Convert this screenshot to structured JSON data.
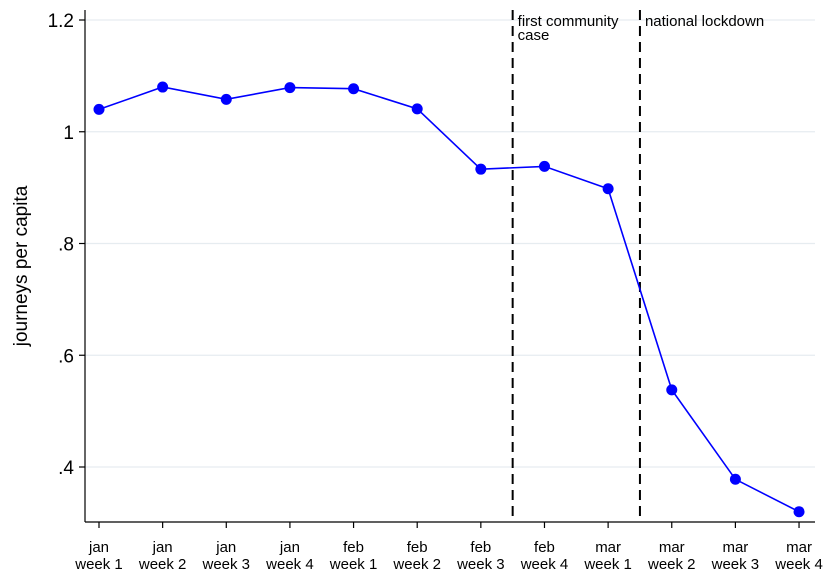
{
  "chart_data": {
    "type": "line",
    "ylabel": "journeys per capita",
    "ylim": [
      0.3,
      1.22
    ],
    "yticks": [
      {
        "value": 0.4,
        "label": ".4"
      },
      {
        "value": 0.6,
        "label": ".6"
      },
      {
        "value": 0.8,
        "label": ".8"
      },
      {
        "value": 1.0,
        "label": "1"
      },
      {
        "value": 1.2,
        "label": "1.2"
      }
    ],
    "categories": [
      [
        "jan",
        "week 1"
      ],
      [
        "jan",
        "week 2"
      ],
      [
        "jan",
        "week 3"
      ],
      [
        "jan",
        "week 4"
      ],
      [
        "feb",
        "week 1"
      ],
      [
        "feb",
        "week 2"
      ],
      [
        "feb",
        "week 3"
      ],
      [
        "feb",
        "week 4"
      ],
      [
        "mar",
        "week 1"
      ],
      [
        "mar",
        "week 2"
      ],
      [
        "mar",
        "week 3"
      ],
      [
        "mar",
        "week 4"
      ]
    ],
    "series": [
      {
        "color": "#0000ff",
        "values": [
          1.04,
          1.08,
          1.058,
          1.079,
          1.077,
          1.041,
          0.933,
          0.938,
          0.898,
          0.538,
          0.378,
          0.32
        ]
      }
    ],
    "vlines": [
      {
        "after_index": 6.5,
        "label_lines": [
          "first community",
          "case"
        ],
        "style": "dashed"
      },
      {
        "after_index": 8.5,
        "label_lines": [
          "national lockdown"
        ],
        "style": "dashed"
      }
    ],
    "grid": "horizontal"
  }
}
